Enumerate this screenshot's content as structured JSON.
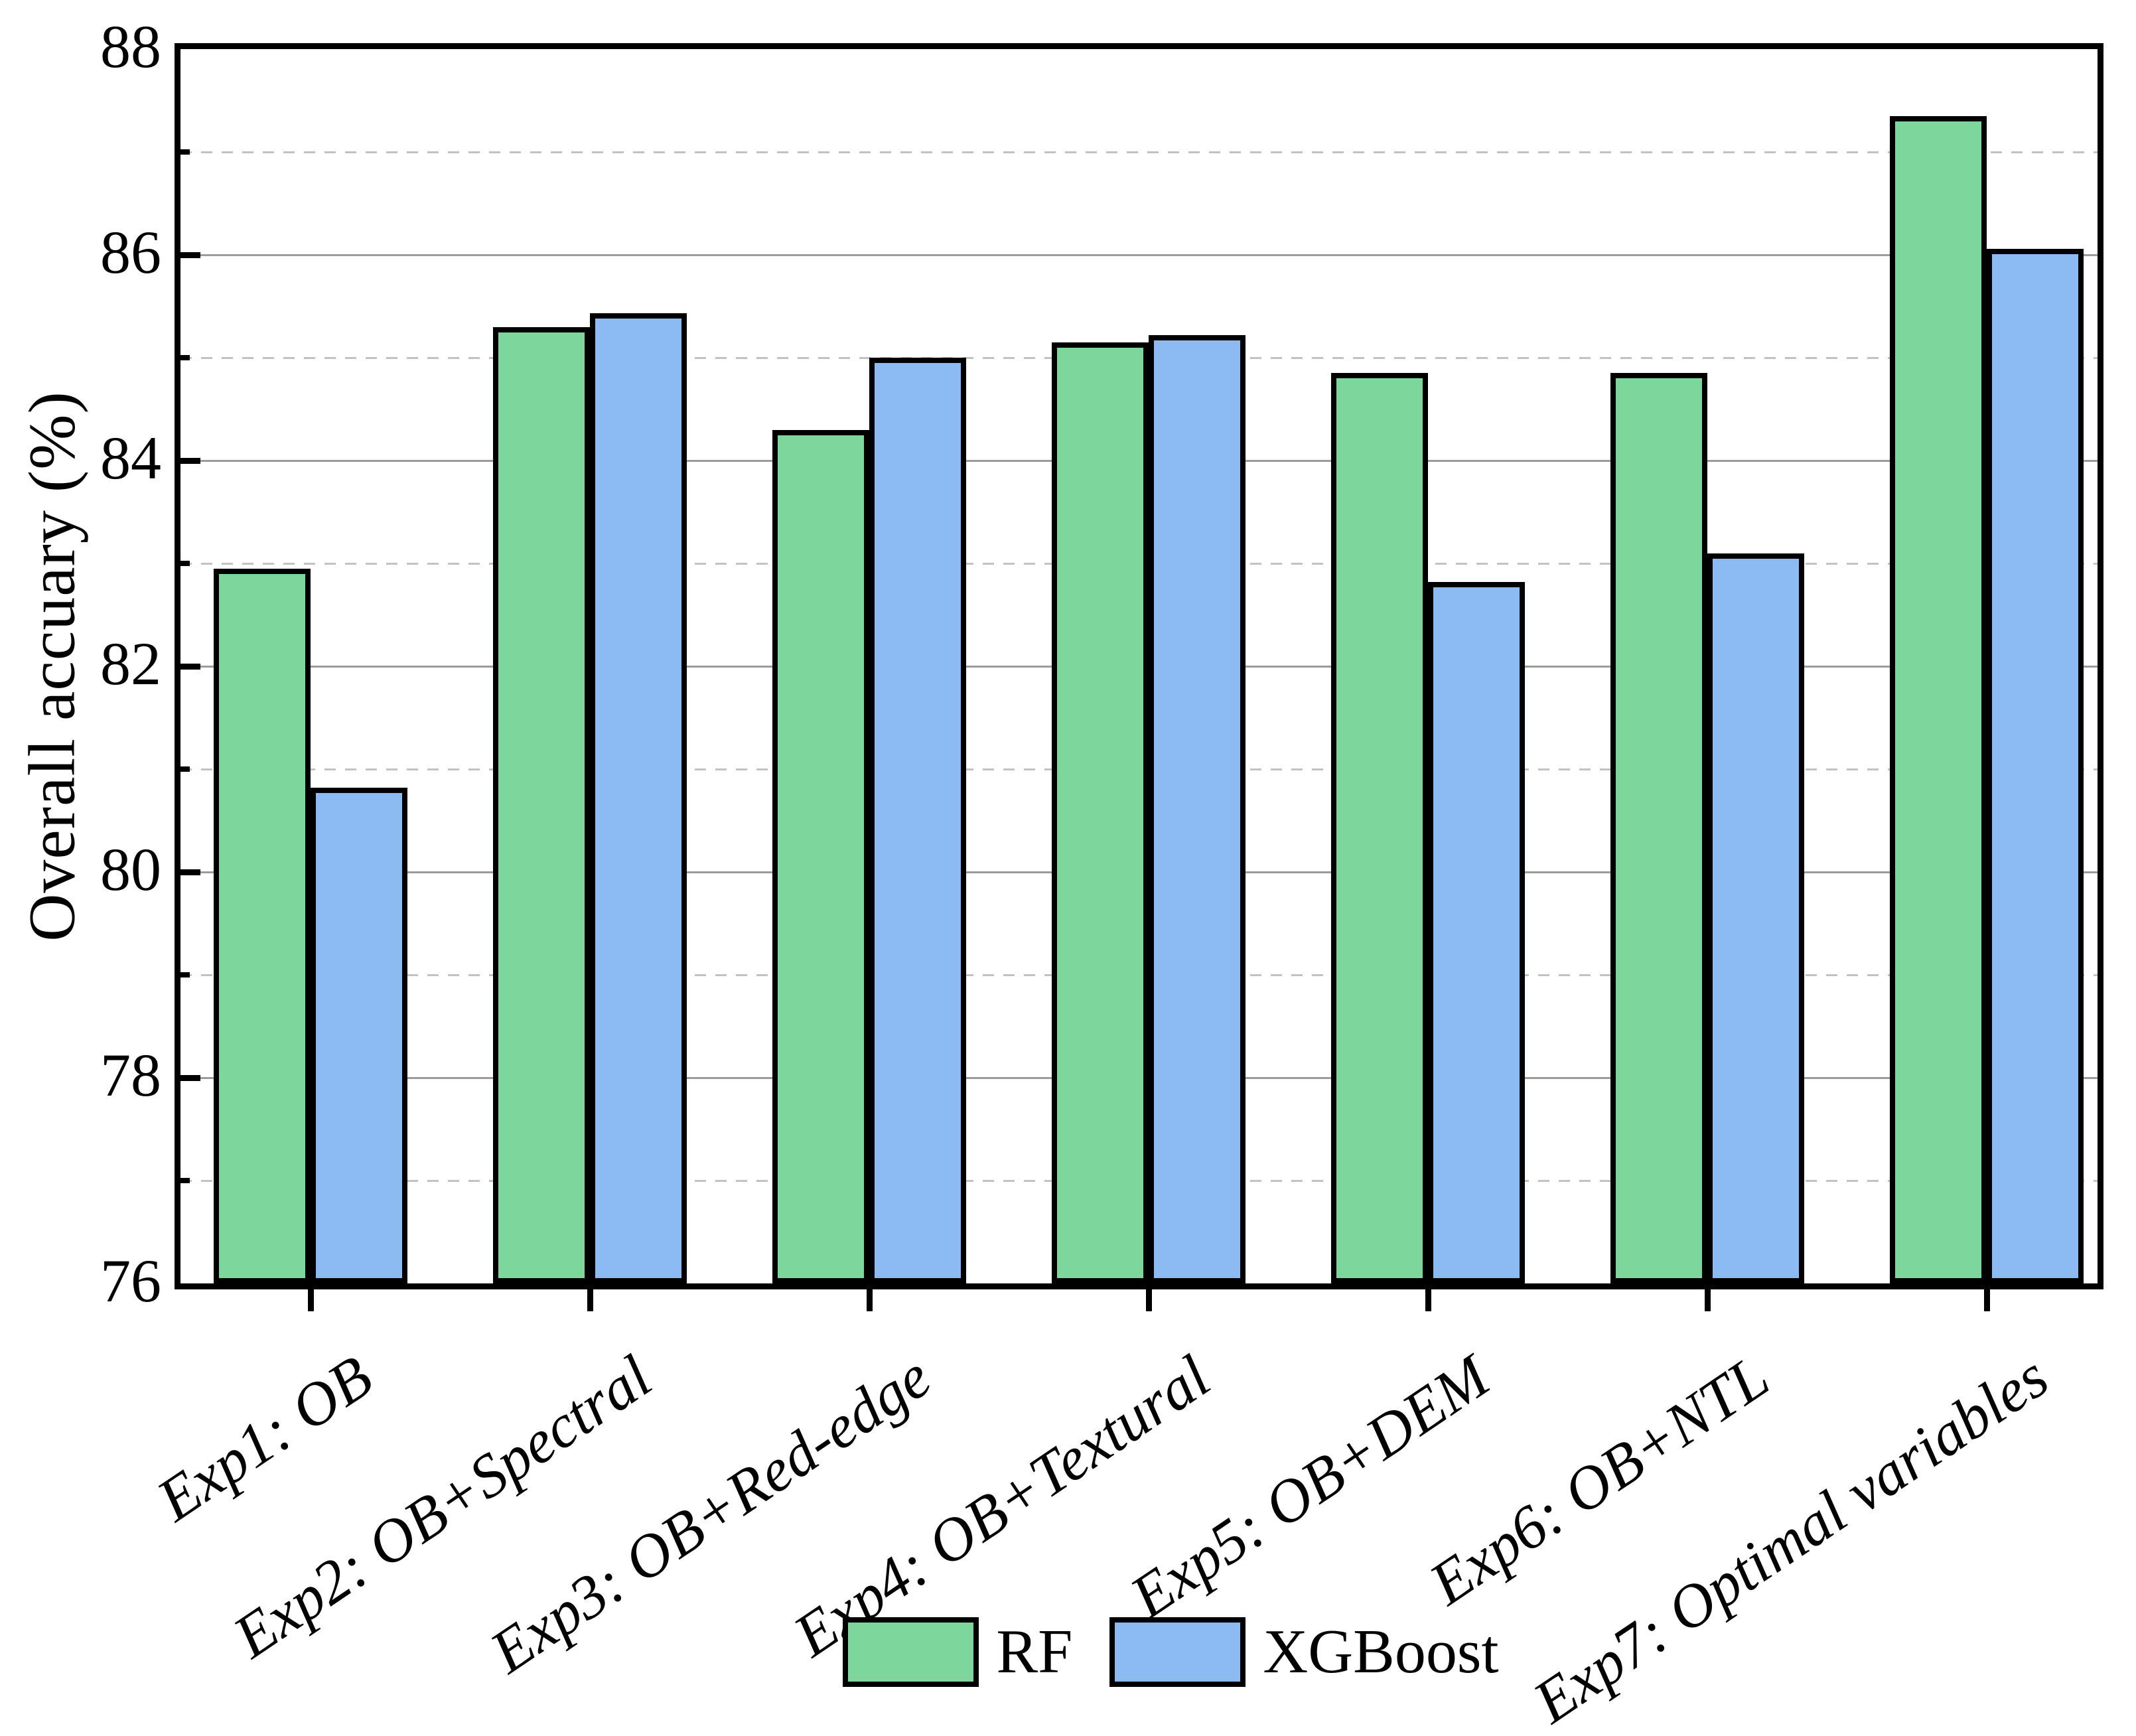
{
  "figure": {
    "background_color": "#ffffff",
    "frame_color": "#000000"
  },
  "chart_data": {
    "type": "bar",
    "title": "",
    "xlabel": "",
    "ylabel": "Overall accuary (%)",
    "ylim": [
      76,
      88
    ],
    "y_major_ticks": [
      76,
      78,
      80,
      82,
      84,
      86,
      88
    ],
    "y_minor_ticks": [
      77,
      79,
      81,
      83,
      85,
      87
    ],
    "grid": "horizontal only: solid gray lines at major ticks, dashed light-gray lines at minor ticks",
    "legend_position": "bottom center",
    "categories": [
      "Exp1: OB",
      "Exp2: OB+Spectral",
      "Exp3: OB+Red-edge",
      "Exp4: OB+Textural",
      "Exp5: OB+DEM",
      "Exp6: OB+NTL",
      "Exp7: Optimal variables"
    ],
    "series": [
      {
        "name": "RF",
        "color": "#7DD69B",
        "values": [
          82.95,
          85.3,
          84.3,
          85.15,
          84.85,
          84.85,
          87.35
        ]
      },
      {
        "name": "XGBoost",
        "color": "#8CBAF2",
        "values": [
          80.82,
          85.43,
          85.0,
          85.22,
          82.82,
          83.1,
          86.06
        ]
      }
    ],
    "bar_border_color": "#000000",
    "solid_gridline_color": "#9b9b9b",
    "dashed_gridline_color": "#c2c2c2"
  },
  "legend": {
    "items": [
      {
        "label": "RF",
        "color": "#7DD69B"
      },
      {
        "label": "XGBoost",
        "color": "#8CBAF2"
      }
    ]
  }
}
